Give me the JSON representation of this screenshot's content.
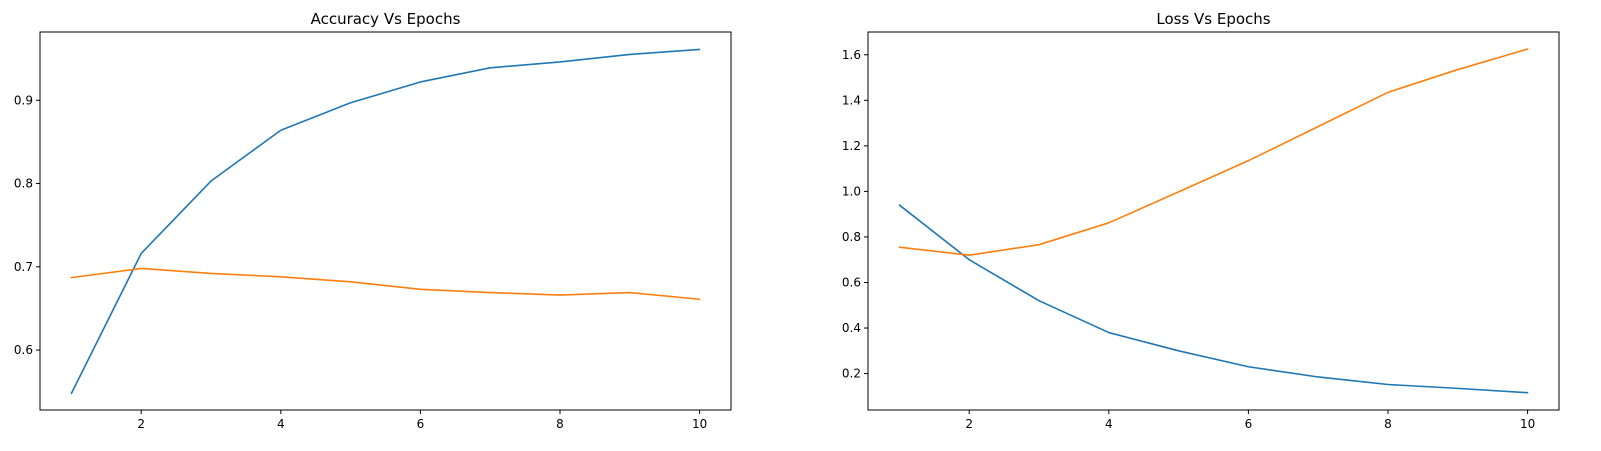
{
  "colors": {
    "train": "#1f77b4",
    "val": "#ff7f0e"
  },
  "chart_data": [
    {
      "type": "line",
      "title": "Accuracy Vs Epochs",
      "xlabel": "",
      "ylabel": "",
      "xlim": [
        0.55,
        10.45
      ],
      "ylim": [
        0.528,
        0.982
      ],
      "xticks": [
        2,
        4,
        6,
        8,
        10
      ],
      "xtick_labels": [
        "2",
        "4",
        "6",
        "8",
        "10"
      ],
      "yticks": [
        0.6,
        0.7,
        0.8,
        0.9
      ],
      "ytick_labels": [
        "0.6",
        "0.7",
        "0.8",
        "0.9"
      ],
      "grid": false,
      "x": [
        1,
        2,
        3,
        4,
        5,
        6,
        7,
        8,
        9,
        10
      ],
      "series": [
        {
          "color": "#1f77b4",
          "values": [
            0.548,
            0.716,
            0.803,
            0.864,
            0.897,
            0.922,
            0.939,
            0.946,
            0.955,
            0.961
          ]
        },
        {
          "color": "#ff7f0e",
          "values": [
            0.687,
            0.698,
            0.692,
            0.688,
            0.682,
            0.673,
            0.669,
            0.666,
            0.669,
            0.661
          ]
        }
      ]
    },
    {
      "type": "line",
      "title": "Loss Vs Epochs",
      "xlabel": "",
      "ylabel": "",
      "xlim": [
        0.55,
        10.45
      ],
      "ylim": [
        0.04,
        1.7
      ],
      "xticks": [
        2,
        4,
        6,
        8,
        10
      ],
      "xtick_labels": [
        "2",
        "4",
        "6",
        "8",
        "10"
      ],
      "yticks": [
        0.2,
        0.4,
        0.6,
        0.8,
        1.0,
        1.2,
        1.4,
        1.6
      ],
      "ytick_labels": [
        "0.2",
        "0.4",
        "0.6",
        "0.8",
        "1.0",
        "1.2",
        "1.4",
        "1.6"
      ],
      "grid": false,
      "x": [
        1,
        2,
        3,
        4,
        5,
        6,
        7,
        8,
        9,
        10
      ],
      "series": [
        {
          "color": "#1f77b4",
          "values": [
            0.94,
            0.7,
            0.52,
            0.38,
            0.3,
            0.23,
            0.185,
            0.152,
            0.135,
            0.116
          ]
        },
        {
          "color": "#ff7f0e",
          "values": [
            0.755,
            0.72,
            0.766,
            0.862,
            0.998,
            1.135,
            1.285,
            1.435,
            1.535,
            1.625
          ]
        }
      ]
    }
  ]
}
